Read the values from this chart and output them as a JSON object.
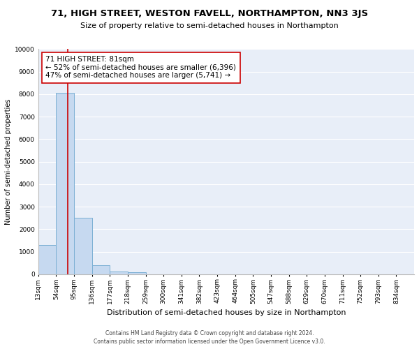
{
  "title": "71, HIGH STREET, WESTON FAVELL, NORTHAMPTON, NN3 3JS",
  "subtitle": "Size of property relative to semi-detached houses in Northampton",
  "xlabel": "Distribution of semi-detached houses by size in Northampton",
  "ylabel": "Number of semi-detached properties",
  "bin_labels": [
    "13sqm",
    "54sqm",
    "95sqm",
    "136sqm",
    "177sqm",
    "218sqm",
    "259sqm",
    "300sqm",
    "341sqm",
    "382sqm",
    "423sqm",
    "464sqm",
    "505sqm",
    "547sqm",
    "588sqm",
    "629sqm",
    "670sqm",
    "711sqm",
    "752sqm",
    "793sqm",
    "834sqm"
  ],
  "bar_heights": [
    1300,
    8050,
    2500,
    400,
    130,
    100,
    0,
    0,
    0,
    0,
    0,
    0,
    0,
    0,
    0,
    0,
    0,
    0,
    0,
    0,
    0
  ],
  "ylim": [
    0,
    10000
  ],
  "yticks": [
    0,
    1000,
    2000,
    3000,
    4000,
    5000,
    6000,
    7000,
    8000,
    9000,
    10000
  ],
  "bar_color": "#c6d9f0",
  "bar_edge_color": "#7bafd4",
  "background_color": "#e8eef8",
  "grid_color": "#ffffff",
  "annotation_box_edge": "#cc0000",
  "annotation_line_color": "#cc0000",
  "annotation_title": "71 HIGH STREET: 81sqm",
  "annotation_line1": "← 52% of semi-detached houses are smaller (6,396)",
  "annotation_line2": "47% of semi-detached houses are larger (5,741) →",
  "footer_line1": "Contains HM Land Registry data © Crown copyright and database right 2024.",
  "footer_line2": "Contains public sector information licensed under the Open Government Licence v3.0.",
  "title_fontsize": 9.5,
  "subtitle_fontsize": 8,
  "annotation_fontsize": 7.5,
  "ylabel_fontsize": 7,
  "xlabel_fontsize": 8,
  "tick_fontsize": 6.5,
  "footer_fontsize": 5.5
}
